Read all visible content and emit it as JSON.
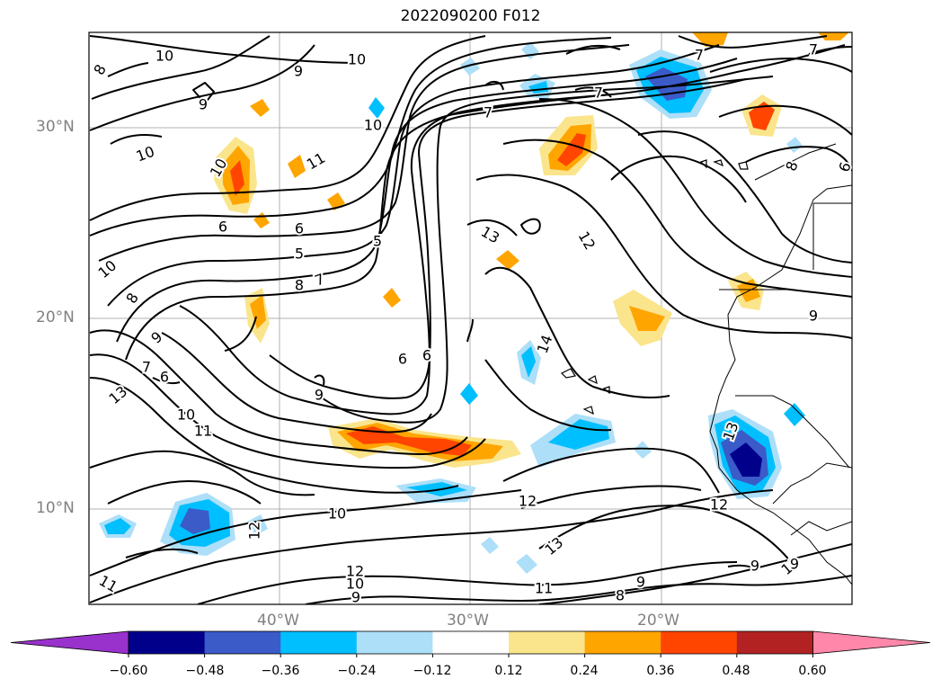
{
  "title": "2022090200 F012",
  "lat_labels": [
    "30°N",
    "20°N",
    "10°N"
  ],
  "lon_labels": [
    "40°W",
    "30°W",
    "20°W"
  ],
  "colorbar": {
    "ticks": [
      "−0.60",
      "−0.48",
      "−0.36",
      "−0.24",
      "−0.12",
      "0.12",
      "0.24",
      "0.36",
      "0.48",
      "0.60"
    ],
    "colors": [
      "#9932CC",
      "#00008B",
      "#3A5BC8",
      "#00BFFF",
      "#ADDFF8",
      "#FFFFFF",
      "#FAE58C",
      "#FFA500",
      "#FF4500",
      "#B22222",
      "#FF88AA"
    ]
  },
  "contour_labels": [
    {
      "text": "10"
    },
    {
      "text": "9"
    },
    {
      "text": "10"
    },
    {
      "text": "9"
    },
    {
      "text": "10"
    },
    {
      "text": "10"
    },
    {
      "text": "11"
    },
    {
      "text": "10"
    },
    {
      "text": "7"
    },
    {
      "text": "7"
    },
    {
      "text": "8"
    },
    {
      "text": "6"
    },
    {
      "text": "6"
    },
    {
      "text": "5"
    },
    {
      "text": "6"
    },
    {
      "text": "5"
    },
    {
      "text": "8"
    },
    {
      "text": "7"
    },
    {
      "text": "10"
    },
    {
      "text": "8"
    },
    {
      "text": "9"
    },
    {
      "text": "7"
    },
    {
      "text": "6"
    },
    {
      "text": "13"
    },
    {
      "text": "10"
    },
    {
      "text": "11"
    },
    {
      "text": "9"
    },
    {
      "text": "6"
    },
    {
      "text": "13"
    },
    {
      "text": "12"
    },
    {
      "text": "14"
    },
    {
      "text": "12"
    },
    {
      "text": "13"
    },
    {
      "text": "9"
    },
    {
      "text": "8"
    },
    {
      "text": "7"
    },
    {
      "text": "9"
    },
    {
      "text": "13"
    },
    {
      "text": "12"
    },
    {
      "text": "12"
    },
    {
      "text": "10"
    },
    {
      "text": "9"
    },
    {
      "text": "8"
    },
    {
      "text": "11"
    },
    {
      "text": "10"
    },
    {
      "text": "12"
    },
    {
      "text": "9"
    },
    {
      "text": "11"
    },
    {
      "text": "9"
    },
    {
      "text": "10"
    },
    {
      "text": "7"
    },
    {
      "text": "6"
    }
  ]
}
